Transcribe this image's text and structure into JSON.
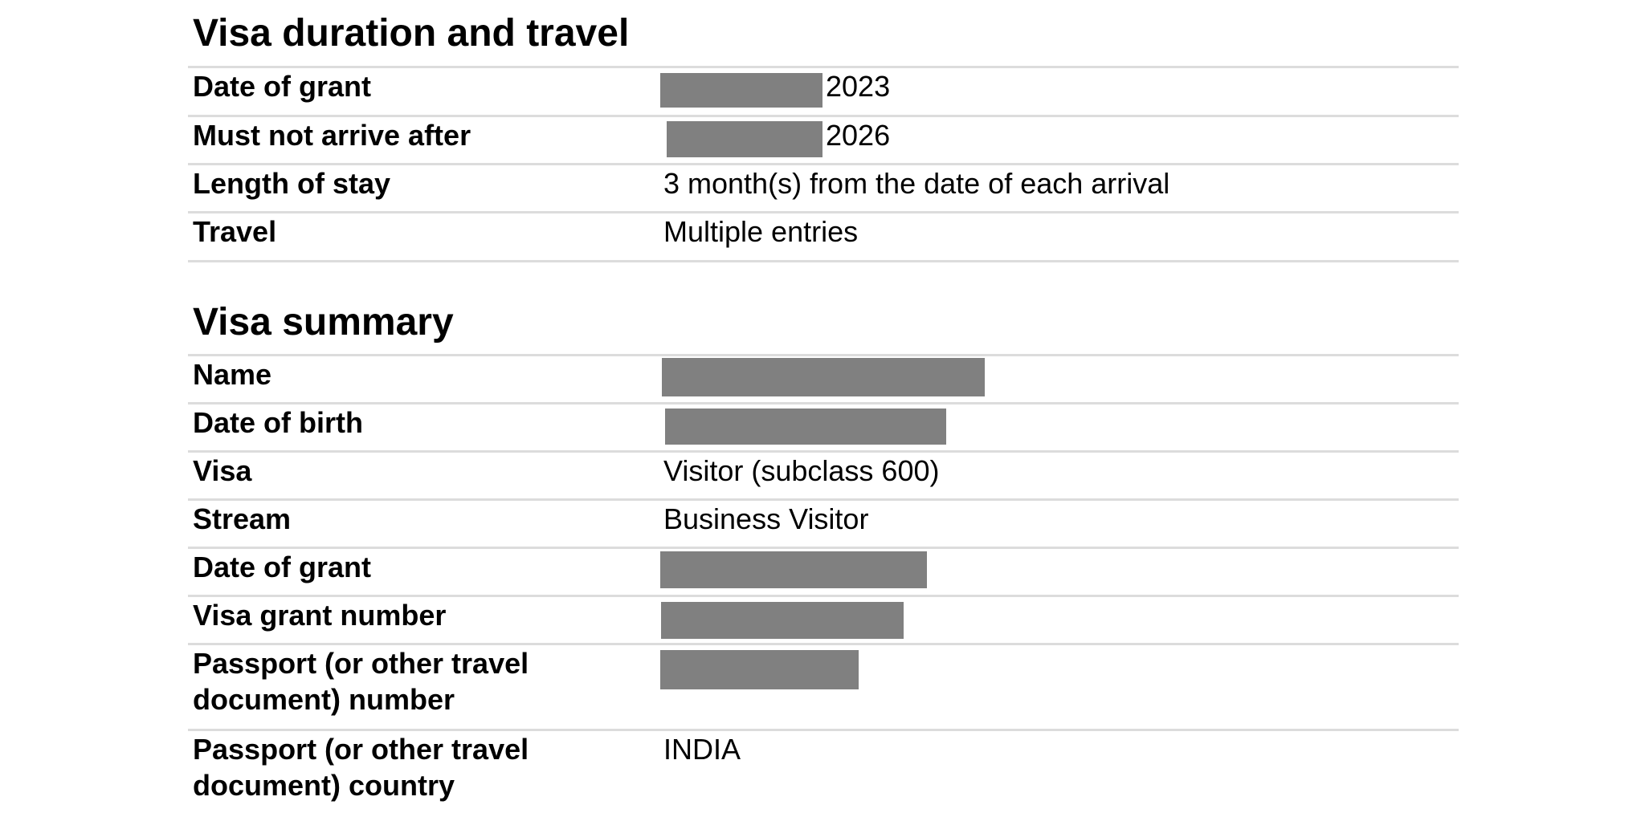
{
  "sections": {
    "duration": {
      "title": "Visa duration and travel",
      "rows": [
        {
          "label": "Date of grant",
          "value": "2023",
          "redacted": true
        },
        {
          "label": "Must not arrive after",
          "value": "2026",
          "redacted": true
        },
        {
          "label": "Length of stay",
          "value": "3 month(s) from the date of each arrival"
        },
        {
          "label": "Travel",
          "value": "Multiple entries"
        }
      ]
    },
    "summary": {
      "title": "Visa summary",
      "rows": [
        {
          "label": "Name",
          "redacted": true
        },
        {
          "label": "Date of birth",
          "redacted": true
        },
        {
          "label": "Visa",
          "value": "Visitor (subclass 600)"
        },
        {
          "label": "Stream",
          "value": "Business Visitor"
        },
        {
          "label": "Date of grant",
          "redacted": true
        },
        {
          "label": "Visa grant number",
          "redacted": true
        },
        {
          "label_line1": "Passport (or other travel",
          "label_line2": "document) number",
          "redacted": true
        },
        {
          "label_line1": "Passport (or other travel",
          "label_line2": "document) country",
          "value": "INDIA"
        }
      ]
    }
  },
  "colors": {
    "redaction": "#808080",
    "rule": "#dcdcdc",
    "text": "#000000"
  }
}
